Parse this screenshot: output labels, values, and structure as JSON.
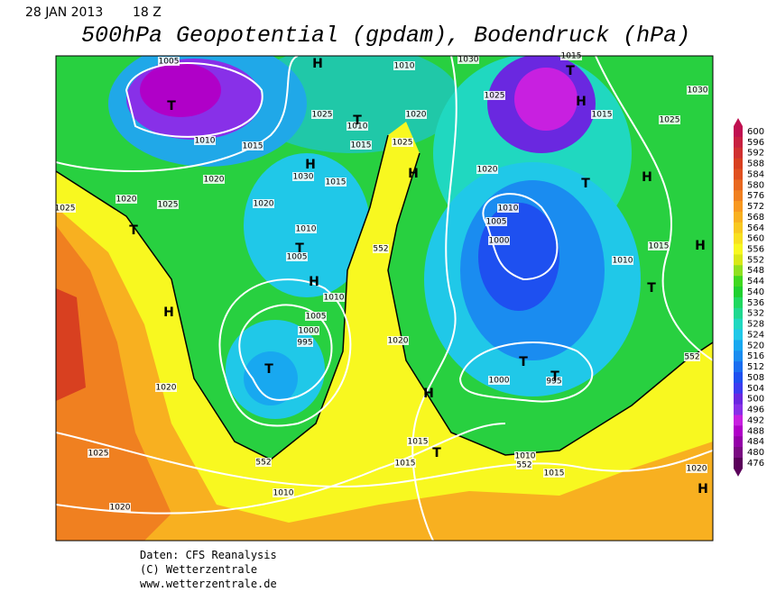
{
  "header": {
    "date": "28 JAN 2013",
    "time": "18 Z",
    "title": "500hPa Geopotential (gpdam), Bodendruck (hPa)"
  },
  "legend": {
    "levels": [
      600,
      596,
      592,
      588,
      584,
      580,
      576,
      572,
      568,
      564,
      560,
      556,
      552,
      548,
      544,
      540,
      536,
      532,
      528,
      524,
      520,
      516,
      512,
      508,
      504,
      500,
      496,
      492,
      488,
      484,
      480,
      476
    ],
    "colors": [
      "#c01050",
      "#c82040",
      "#d03030",
      "#d84020",
      "#e05020",
      "#e86820",
      "#f08020",
      "#f89820",
      "#f8b020",
      "#f8c820",
      "#f8e020",
      "#f8f820",
      "#d8e818",
      "#90e020",
      "#40d820",
      "#20d030",
      "#20d860",
      "#20d890",
      "#20d8c0",
      "#20c8e8",
      "#18a8f0",
      "#1a8cf0",
      "#1a6ef0",
      "#1e50f0",
      "#3c3cf0",
      "#6a28e0",
      "#8830e8",
      "#c820e0",
      "#b000c8",
      "#9400a8",
      "#7a0a82",
      "#5a005a"
    ]
  },
  "map_labels": [
    "1005",
    "1010",
    "1030",
    "1015",
    "1025",
    "1030",
    "1025",
    "1010",
    "1020",
    "1015",
    "1025",
    "1010",
    "1015",
    "1015",
    "1025",
    "1030",
    "1015",
    "1020",
    "1020",
    "1020",
    "1025",
    "1020",
    "1025",
    "1010",
    "1005",
    "1000",
    "1010",
    "1005",
    "1015",
    "1010",
    "1010",
    "1005",
    "1000",
    "995",
    "1020",
    "1020",
    "1000",
    "995",
    "1015",
    "1015",
    "1010",
    "1015",
    "1010",
    "1025",
    "1020",
    "1020",
    "552",
    "552",
    "552",
    "552",
    "H",
    "T",
    "T",
    "H",
    "T",
    "H",
    "H",
    "T",
    "H",
    "T",
    "T",
    "H",
    "H",
    "T",
    "H",
    "T",
    "T",
    "T",
    "H",
    "T",
    "H"
  ],
  "credits": [
    "Daten: CFS Reanalysis",
    "(C) Wetterzentrale",
    "www.wetterzentrale.de"
  ]
}
